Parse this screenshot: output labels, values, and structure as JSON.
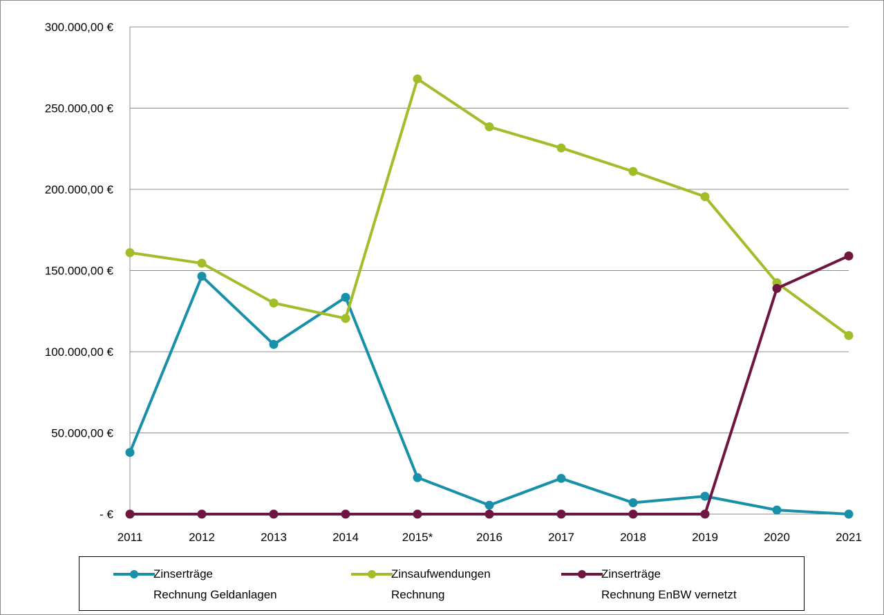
{
  "chart_data": {
    "type": "line",
    "categories": [
      "2011",
      "2012",
      "2013",
      "2014",
      "2015*",
      "2016",
      "2017",
      "2018",
      "2019",
      "2020",
      "2021"
    ],
    "y_tick_labels": [
      "-  €",
      "50.000,00 €",
      "100.000,00 €",
      "150.000,00 €",
      "200.000,00 €",
      "250.000,00 €",
      "300.000,00 €"
    ],
    "y_ticks": [
      0,
      50000,
      100000,
      150000,
      200000,
      250000,
      300000
    ],
    "ylim": [
      0,
      300000
    ],
    "grid": "horizontal",
    "legend_position": "bottom",
    "series": [
      {
        "name_line1": "Zinserträge",
        "name_line2": "Rechnung Geldanlagen",
        "color": "#1790a8",
        "values": [
          38000,
          146500,
          104500,
          133500,
          22500,
          5500,
          22000,
          7000,
          11000,
          2500,
          0
        ]
      },
      {
        "name_line1": "Zinsaufwendungen",
        "name_line2": "Rechnung",
        "color": "#a2bd2a",
        "values": [
          161000,
          154500,
          130000,
          120500,
          268000,
          238500,
          225500,
          211000,
          195500,
          142500,
          110000
        ]
      },
      {
        "name_line1": "Zinserträge",
        "name_line2": "Rechnung EnBW vernetzt",
        "color": "#6e1640",
        "values": [
          0,
          0,
          0,
          0,
          0,
          0,
          0,
          0,
          0,
          139000,
          159000
        ]
      }
    ]
  }
}
